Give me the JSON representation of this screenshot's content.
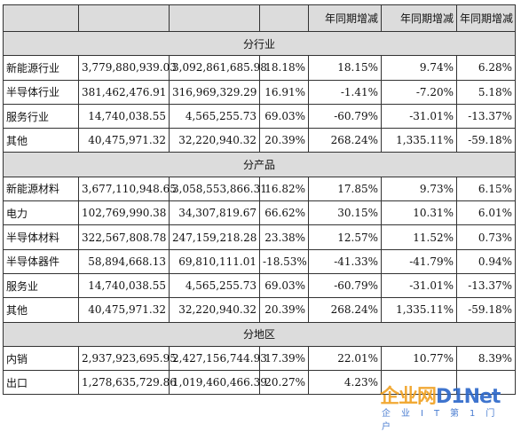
{
  "header": [
    "",
    "",
    "",
    "",
    "年同期增减",
    "年同期增减",
    "年同期增减"
  ],
  "sections": [
    {
      "title": "分行业",
      "rows": [
        [
          "新能源行业",
          "3,779,880,939.03",
          "3,092,861,685.98",
          "18.18%",
          "18.15%",
          "9.74%",
          "6.28%"
        ],
        [
          "半导体行业",
          "381,462,476.91",
          "316,969,329.29",
          "16.91%",
          "-1.41%",
          "-7.20%",
          "5.18%"
        ],
        [
          "服务行业",
          "14,740,038.55",
          "4,565,255.73",
          "69.03%",
          "-60.79%",
          "-31.01%",
          "-13.37%"
        ],
        [
          "其他",
          "40,475,971.32",
          "32,220,940.32",
          "20.39%",
          "268.24%",
          "1,335.11%",
          "-59.18%"
        ]
      ]
    },
    {
      "title": "分产品",
      "rows": [
        [
          "新能源材料",
          "3,677,110,948.65",
          "3,058,553,866.31",
          "16.82%",
          "17.85%",
          "9.73%",
          "6.15%"
        ],
        [
          "电力",
          "102,769,990.38",
          "34,307,819.67",
          "66.62%",
          "30.15%",
          "10.31%",
          "6.01%"
        ],
        [
          "半导体材料",
          "322,567,808.78",
          "247,159,218.28",
          "23.38%",
          "12.57%",
          "11.52%",
          "0.73%"
        ],
        [
          "半导体器件",
          "58,894,668.13",
          "69,810,111.01",
          "-18.53%",
          "-41.33%",
          "-41.79%",
          "0.94%"
        ],
        [
          "服务业",
          "14,740,038.55",
          "4,565,255.73",
          "69.03%",
          "-60.79%",
          "-31.01%",
          "-13.37%"
        ],
        [
          "其他",
          "40,475,971.32",
          "32,220,940.32",
          "20.39%",
          "268.24%",
          "1,335.11%",
          "-59.18%"
        ]
      ]
    },
    {
      "title": "分地区",
      "rows": [
        [
          "内销",
          "2,937,923,695.95",
          "2,427,156,744.93",
          "17.39%",
          "22.01%",
          "10.77%",
          "8.39%"
        ],
        [
          "出口",
          "1,278,635,729.86",
          "1,019,460,466.39",
          "20.27%",
          "4.23%",
          "",
          ""
        ]
      ]
    }
  ],
  "watermark": {
    "main_a": "企业网",
    "main_b": "D1Net",
    "sub": "企业IT第1门户"
  }
}
